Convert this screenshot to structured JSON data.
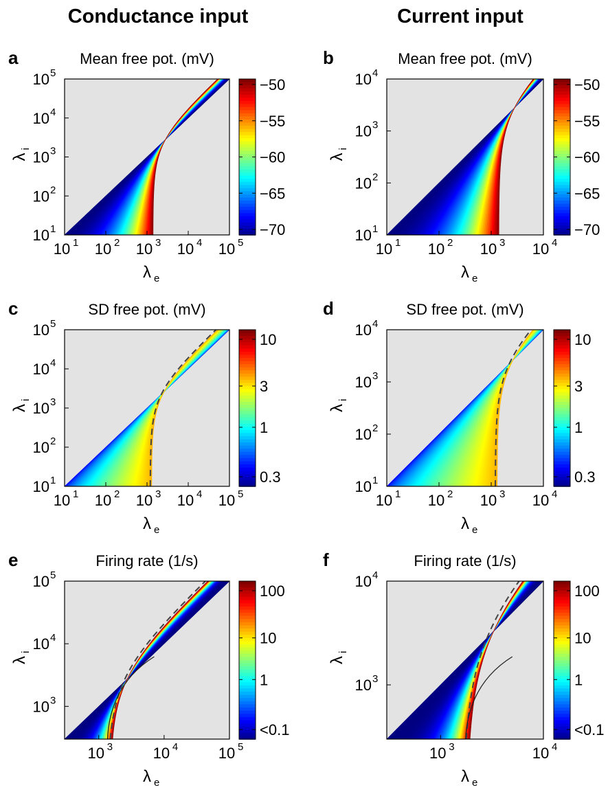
{
  "columns": {
    "left": "Conductance input",
    "right": "Current input"
  },
  "chart_data": [
    {
      "panel": "a",
      "type": "heatmap",
      "title": "Mean free pot. (mV)",
      "xlabel": "λe",
      "ylabel": "λi",
      "xscale": "log",
      "yscale": "log",
      "xlim": [
        10,
        100000
      ],
      "ylim": [
        10,
        100000
      ],
      "xticks": [
        "10^1",
        "10^2",
        "10^3",
        "10^4",
        "10^5"
      ],
      "yticks": [
        "10^1",
        "10^2",
        "10^3",
        "10^4",
        "10^5"
      ],
      "colorbar": {
        "ticks": [
          "−50",
          "−55",
          "−60",
          "−65",
          "−70"
        ],
        "range": [
          -70,
          -50
        ]
      },
      "ridge": {
        "asymptote_x": 1400,
        "slope_ratio": 0.5
      }
    },
    {
      "panel": "b",
      "type": "heatmap",
      "title": "Mean free pot. (mV)",
      "xlabel": "λe",
      "ylabel": "λi",
      "xscale": "log",
      "yscale": "log",
      "xlim": [
        10,
        10000
      ],
      "ylim": [
        10,
        10000
      ],
      "xticks": [
        "10^1",
        "10^2",
        "10^3",
        "10^4"
      ],
      "yticks": [
        "10^1",
        "10^2",
        "10^3",
        "10^4"
      ],
      "colorbar": {
        "ticks": [
          "−50",
          "−55",
          "−60",
          "−65",
          "−70"
        ],
        "range": [
          -70,
          -50
        ]
      },
      "ridge": {
        "asymptote_x": 1400,
        "slope_ratio": 0.5
      }
    },
    {
      "panel": "c",
      "type": "heatmap",
      "title": "SD free pot. (mV)",
      "xlabel": "λe",
      "ylabel": "λi",
      "xscale": "log",
      "yscale": "log",
      "xlim": [
        10,
        100000
      ],
      "ylim": [
        10,
        100000
      ],
      "xticks": [
        "10^1",
        "10^2",
        "10^3",
        "10^4",
        "10^5"
      ],
      "yticks": [
        "10^1",
        "10^2",
        "10^3",
        "10^4",
        "10^5"
      ],
      "colorbar": {
        "ticks": [
          "10",
          "3",
          "1",
          "0.3"
        ],
        "range": [
          0.3,
          10
        ],
        "scale": "log"
      },
      "dashed_line": {
        "asymptote_x": 1300,
        "slope_ratio": 0.5
      }
    },
    {
      "panel": "d",
      "type": "heatmap",
      "title": "SD free pot. (mV)",
      "xlabel": "λe",
      "ylabel": "λi",
      "xscale": "log",
      "yscale": "log",
      "xlim": [
        10,
        10000
      ],
      "ylim": [
        10,
        10000
      ],
      "xticks": [
        "10^1",
        "10^2",
        "10^3",
        "10^4"
      ],
      "yticks": [
        "10^1",
        "10^2",
        "10^3",
        "10^4"
      ],
      "colorbar": {
        "ticks": [
          "10",
          "3",
          "1",
          "0.3"
        ],
        "range": [
          0.3,
          10
        ],
        "scale": "log"
      },
      "dashed_line": {
        "asymptote_x": 1300,
        "slope_ratio": 0.5
      }
    },
    {
      "panel": "e",
      "type": "heatmap",
      "title": "Firing rate (1/s)",
      "xlabel": "λe",
      "ylabel": "λi",
      "xscale": "log",
      "yscale": "log",
      "xlim": [
        300,
        100000
      ],
      "ylim": [
        300,
        100000
      ],
      "xticks": [
        "10^3",
        "10^4",
        "10^5"
      ],
      "yticks": [
        "10^3",
        "10^4",
        "10^5"
      ],
      "colorbar": {
        "ticks": [
          "100",
          "10",
          "1",
          "<0.1"
        ],
        "range": [
          0.1,
          300
        ],
        "scale": "log"
      },
      "dashed_line": {
        "asymptote_x": 1500,
        "slope_ratio": 0.45
      },
      "solid_curve": true
    },
    {
      "panel": "f",
      "type": "heatmap",
      "title": "Firing rate (1/s)",
      "xlabel": "λe",
      "ylabel": "λi",
      "xscale": "log",
      "yscale": "log",
      "xlim": [
        300,
        10000
      ],
      "ylim": [
        300,
        10000
      ],
      "xticks": [
        "10^3",
        "10^4"
      ],
      "yticks": [
        "10^3",
        "10^4"
      ],
      "colorbar": {
        "ticks": [
          "100",
          "10",
          "1",
          "<0.1"
        ],
        "range": [
          0.1,
          300
        ],
        "scale": "log"
      },
      "dashed_line": {
        "asymptote_x": 1800,
        "slope_ratio": 0.45
      },
      "solid_curve": true
    }
  ],
  "colors": {
    "background_region": "#e3e3e3",
    "colormap": "jet",
    "dashed_line": "#444444"
  }
}
